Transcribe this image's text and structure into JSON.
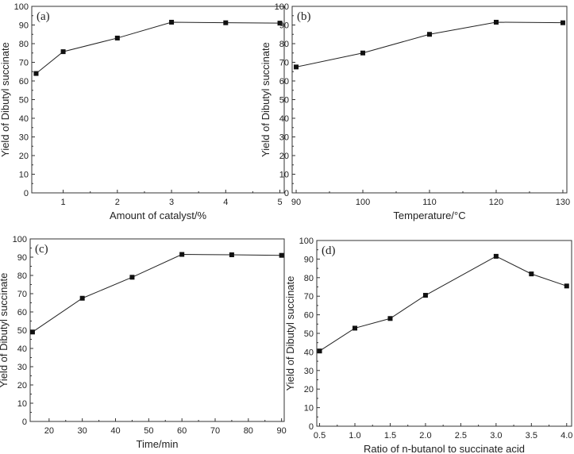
{
  "chart_data": [
    {
      "type": "line",
      "panel_label": "(a)",
      "xlabel": "Amount of catalyst/%",
      "ylabel": "Yield of Dibutyl succinate",
      "x": [
        0.5,
        1,
        2,
        3,
        4,
        5
      ],
      "y": [
        64,
        75.7,
        83,
        91.5,
        91.2,
        91
      ],
      "xlim": [
        0.42,
        5.08
      ],
      "ylim": [
        0,
        100
      ],
      "xticks": [
        1,
        2,
        3,
        4,
        5
      ],
      "xtick_labels": [
        "1",
        "2",
        "3",
        "4",
        "5"
      ],
      "yticks": [
        0,
        10,
        20,
        30,
        40,
        50,
        60,
        70,
        80,
        90,
        100
      ],
      "grid": false
    },
    {
      "type": "line",
      "panel_label": "(b)",
      "xlabel": "Temperature/°C",
      "ylabel": "Yield of Dibutyl succinate",
      "x": [
        90,
        100,
        110,
        120,
        130
      ],
      "y": [
        67.5,
        75,
        85,
        91.5,
        91.2
      ],
      "xlim": [
        89.4,
        130.6
      ],
      "ylim": [
        0,
        100
      ],
      "xticks": [
        90,
        100,
        110,
        120,
        130
      ],
      "xtick_labels": [
        "90",
        "100",
        "110",
        "120",
        "130"
      ],
      "yticks": [
        0,
        10,
        20,
        30,
        40,
        50,
        60,
        70,
        80,
        90,
        100
      ],
      "grid": false
    },
    {
      "type": "line",
      "panel_label": "(c)",
      "xlabel": "Time/min",
      "ylabel": "Yield of Dibutyl succinate",
      "x": [
        15,
        30,
        45,
        60,
        75,
        90
      ],
      "y": [
        49,
        67.5,
        79,
        91.5,
        91.3,
        91
      ],
      "xlim": [
        14.3,
        90.8
      ],
      "ylim": [
        0,
        100
      ],
      "xticks": [
        20,
        30,
        40,
        50,
        60,
        70,
        80,
        90
      ],
      "xtick_labels": [
        "20",
        "30",
        "40",
        "50",
        "60",
        "70",
        "80",
        "90"
      ],
      "yticks": [
        0,
        10,
        20,
        30,
        40,
        50,
        60,
        70,
        80,
        90,
        100
      ],
      "grid": false
    },
    {
      "type": "line",
      "panel_label": "(d)",
      "xlabel": "Ratio of n-butanol to succinate acid",
      "ylabel": "Yield of Dibutyl succinate",
      "x": [
        0.5,
        1.0,
        1.5,
        2.0,
        3.0,
        3.5,
        4.0
      ],
      "y": [
        40.5,
        52.8,
        58,
        70.5,
        91.5,
        82,
        75.5
      ],
      "xlim": [
        0.46,
        4.07
      ],
      "ylim": [
        0,
        100
      ],
      "xticks": [
        0.5,
        1.0,
        1.5,
        2.0,
        2.5,
        3.0,
        3.5,
        4.0
      ],
      "xtick_labels": [
        "0.5",
        "1.0",
        "1.5",
        "2.0",
        "2.5",
        "3.0",
        "3.5",
        "4.0"
      ],
      "yticks": [
        0,
        10,
        20,
        30,
        40,
        50,
        60,
        70,
        80,
        90,
        100
      ],
      "grid": false
    }
  ]
}
